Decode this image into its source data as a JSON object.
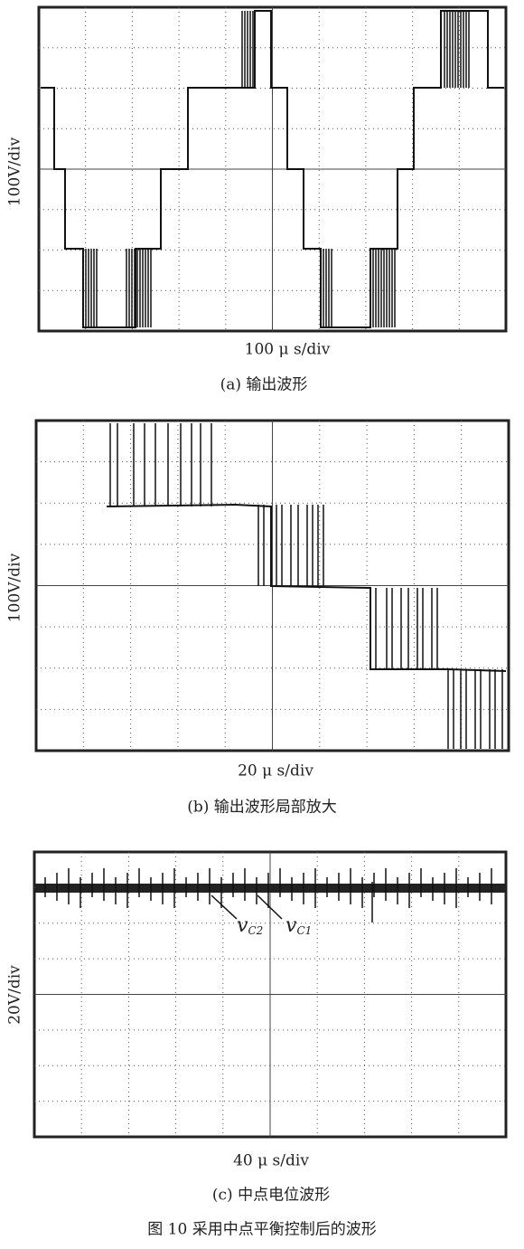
{
  "panels": [
    {
      "y_label": "100V/div",
      "x_label": "100 μ s/div",
      "caption": "(a)   输出波形"
    },
    {
      "y_label": "100V/div",
      "x_label": "20 μ s/div",
      "caption": "(b)   输出波形局部放大"
    },
    {
      "y_label": "20V/div",
      "x_label": "40 μ s/div",
      "caption": "(c)   中点电位波形"
    }
  ],
  "annotations": [
    {
      "symbol": "v",
      "subscript": "C2"
    },
    {
      "symbol": "v",
      "subscript": "C1"
    }
  ],
  "figure_caption": "图 10   采用中点平衡控制后的波形"
}
